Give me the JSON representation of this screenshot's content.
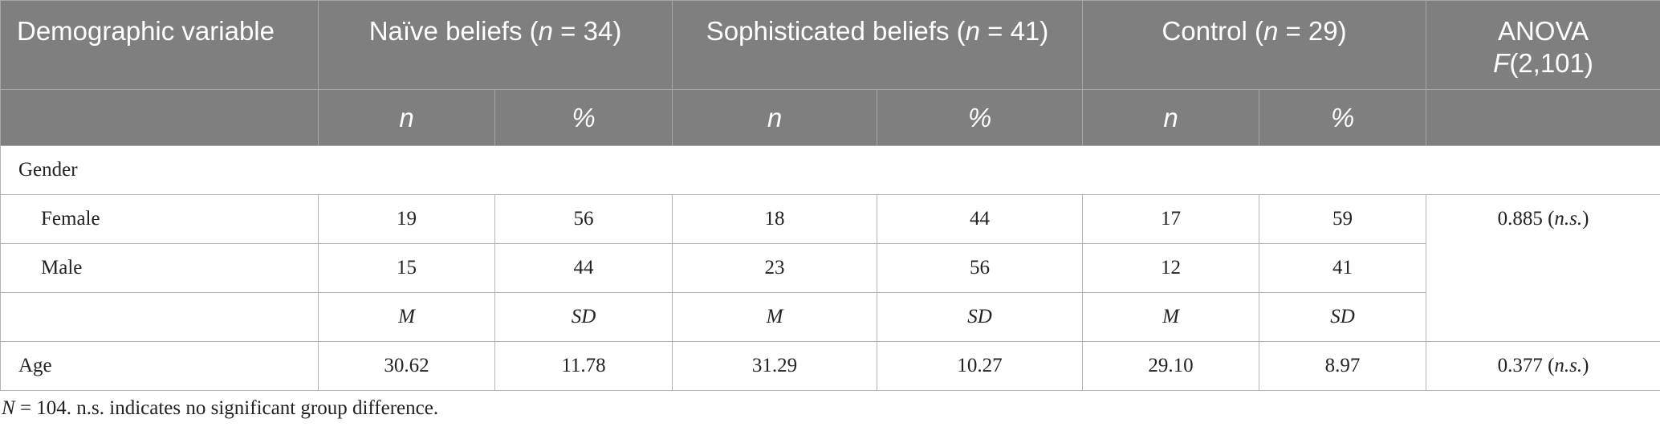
{
  "table": {
    "header": {
      "demographic_variable": "Demographic variable",
      "group1": {
        "label": "Naïve beliefs (",
        "n_sym": "n",
        "eq": " = 34)"
      },
      "group2": {
        "label": "Sophisticated beliefs (",
        "n_sym": "n",
        "eq": " = 41)"
      },
      "group3": {
        "label": "Control (",
        "n_sym": "n",
        "eq": " = 29)"
      },
      "anova": {
        "label": "ANOVA",
        "f_sym": "F",
        "f_df": "(2,101)"
      },
      "sub_n": "n",
      "sub_pct": "%"
    },
    "rows": {
      "gender_section": "Gender",
      "female": {
        "label": "Female",
        "v": [
          "19",
          "56",
          "18",
          "44",
          "17",
          "59"
        ]
      },
      "male": {
        "label": "Male",
        "v": [
          "15",
          "44",
          "23",
          "56",
          "12",
          "41"
        ]
      },
      "gender_anova": {
        "value": "0.885 (",
        "ns": "n.s.",
        "close": ")"
      },
      "stats_header": [
        "M",
        "SD",
        "M",
        "SD",
        "M",
        "SD"
      ],
      "age": {
        "label": "Age",
        "v": [
          "30.62",
          "11.78",
          "31.29",
          "10.27",
          "29.10",
          "8.97"
        ]
      },
      "age_anova": {
        "value": "0.377 (",
        "ns": "n.s.",
        "close": ")"
      }
    }
  },
  "note": {
    "n_sym": "N",
    "text": " = 104. n.s. indicates no significant group difference."
  }
}
